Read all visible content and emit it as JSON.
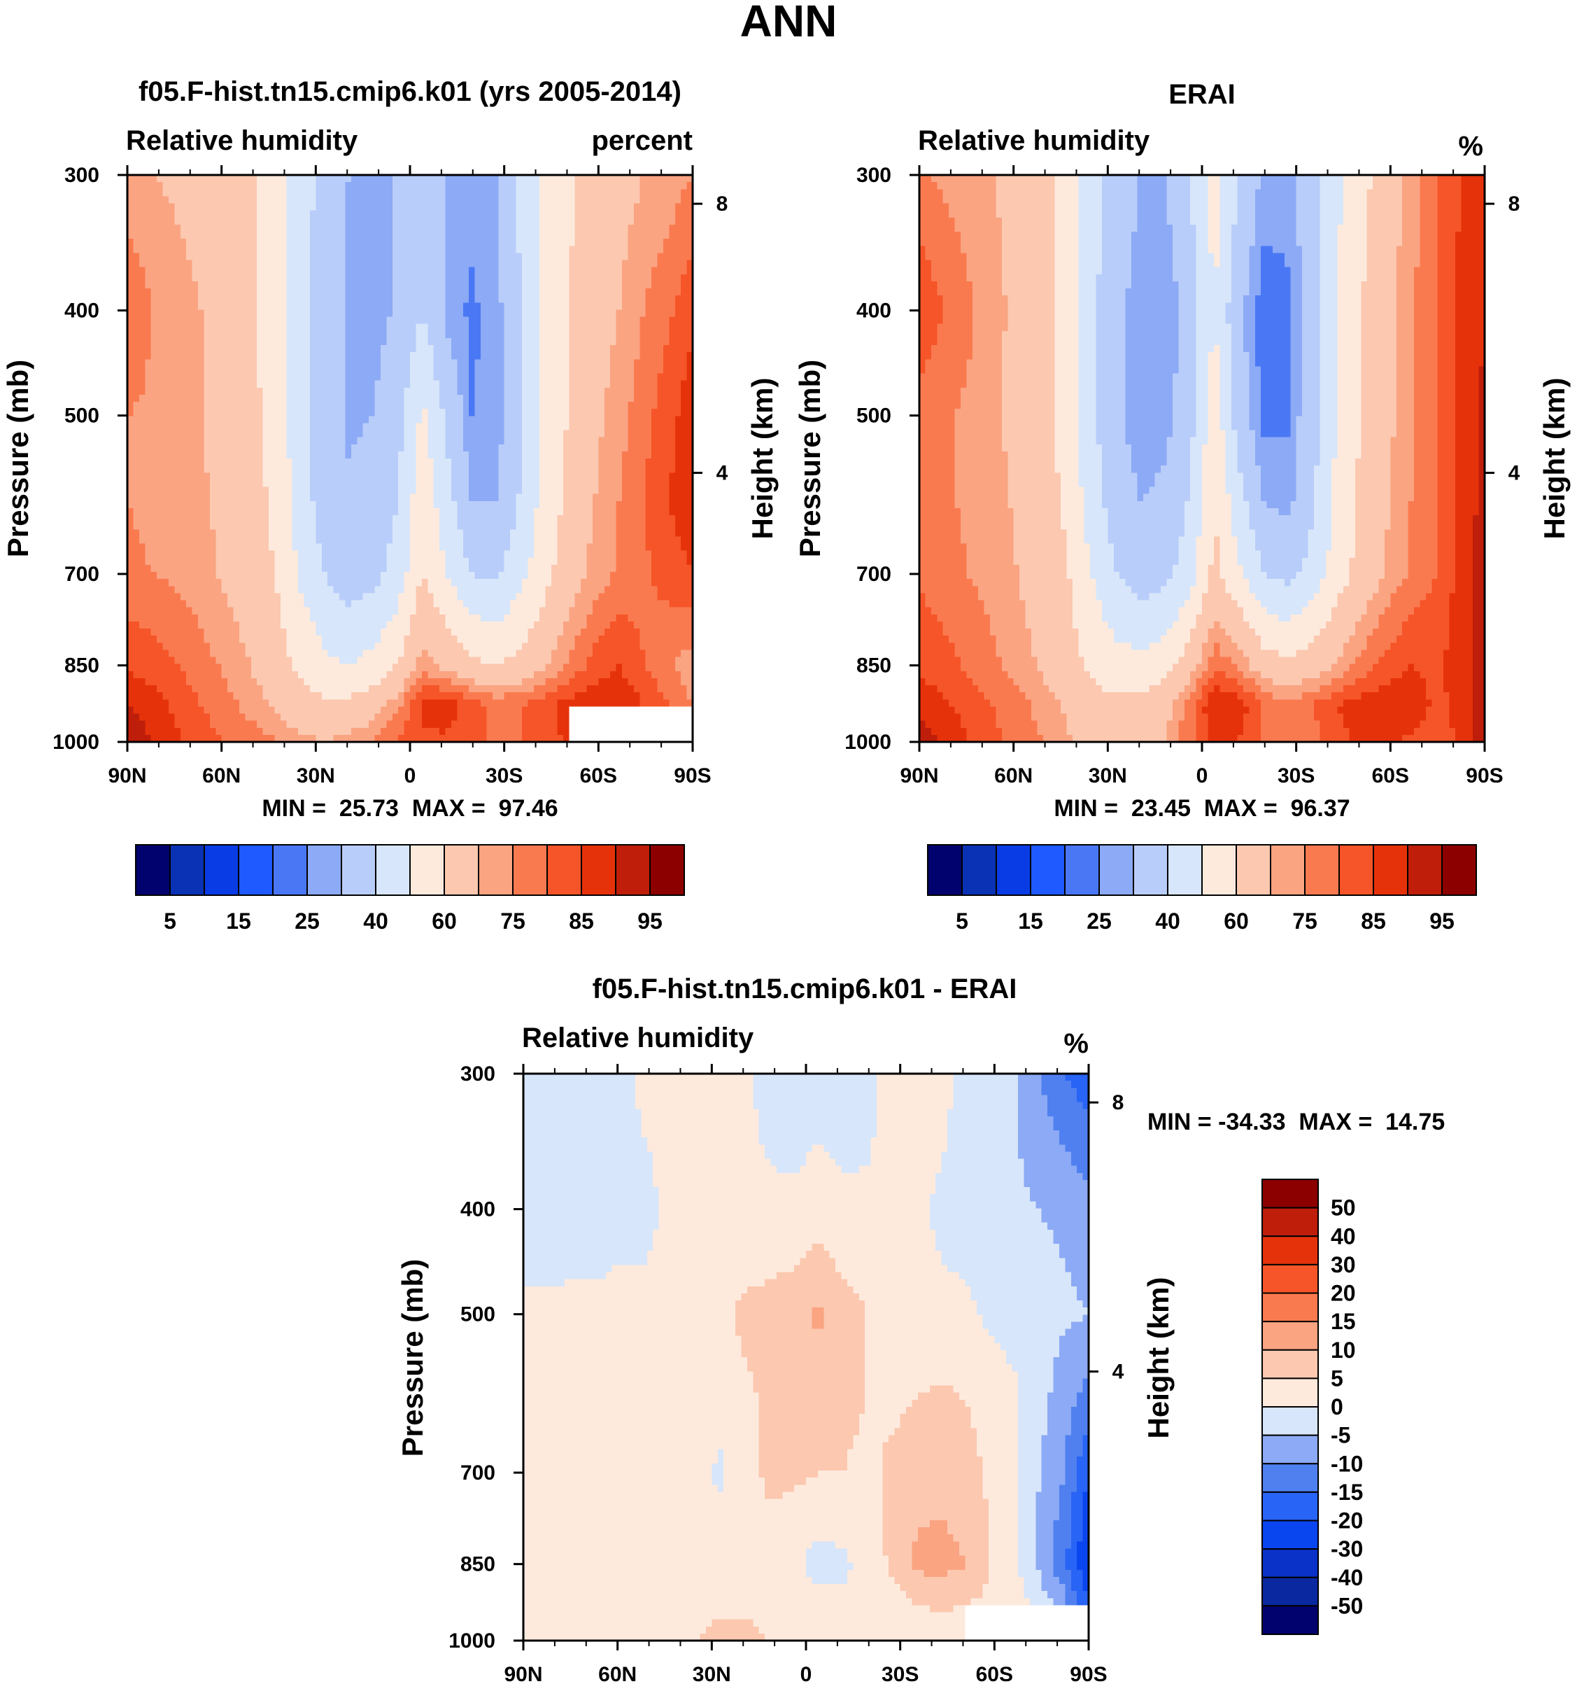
{
  "page": {
    "title": "ANN"
  },
  "chart_data": [
    {
      "type": "heatmap",
      "panel": "model",
      "title": "f05.F-hist.tn15.cmip6.k01 (yrs 2005-2014)",
      "left_label": "Relative humidity",
      "right_label": "percent",
      "ylabel": "Pressure (mb)",
      "y2label": "Height (km)",
      "xticks": [
        "90N",
        "60N",
        "30N",
        "0",
        "30S",
        "60S",
        "90S"
      ],
      "yticks": [
        "300",
        "400",
        "500",
        "700",
        "850",
        "1000"
      ],
      "y2ticks": [
        "8",
        "4"
      ],
      "stats": "MIN =  25.73  MAX =  97.46",
      "xlim": [
        90,
        -90
      ],
      "ylim": [
        300,
        1000
      ],
      "masked_region": {
        "lat": [
          -50,
          -90
        ],
        "pressure": [
          925,
          1000
        ]
      },
      "field": [
        {
          "p": 300,
          "v": [
            71,
            70,
            69,
            68,
            66,
            62,
            56,
            43,
            38,
            30,
            27,
            31,
            36,
            30,
            27,
            30,
            42,
            52,
            59,
            64,
            67,
            70,
            72,
            75
          ]
        },
        {
          "p": 400,
          "v": [
            80,
            75,
            72,
            70,
            67,
            62,
            55,
            43,
            36,
            28,
            27,
            31,
            40,
            28,
            24,
            27,
            40,
            52,
            60,
            66,
            70,
            75,
            79,
            84
          ]
        },
        {
          "p": 500,
          "v": [
            75,
            74,
            72,
            70,
            67,
            63,
            56,
            44,
            34,
            29,
            30,
            36,
            52,
            38,
            25,
            26,
            39,
            52,
            61,
            68,
            73,
            78,
            83,
            88
          ]
        },
        {
          "p": 600,
          "v": [
            75,
            74,
            73,
            71,
            68,
            64,
            58,
            46,
            35,
            31,
            33,
            40,
            57,
            44,
            30,
            30,
            41,
            54,
            63,
            70,
            75,
            80,
            85,
            89
          ]
        },
        {
          "p": 700,
          "v": [
            76,
            75,
            74,
            72,
            69,
            65,
            60,
            49,
            40,
            35,
            37,
            44,
            60,
            50,
            40,
            38,
            47,
            57,
            66,
            72,
            76,
            79,
            82,
            85
          ]
        },
        {
          "p": 850,
          "v": [
            84,
            83,
            80,
            77,
            74,
            70,
            65,
            58,
            52,
            50,
            53,
            60,
            73,
            68,
            62,
            60,
            63,
            69,
            76,
            82,
            85,
            80,
            76,
            72
          ]
        },
        {
          "p": 925,
          "v": [
            90,
            87,
            84,
            80,
            77,
            73,
            69,
            64,
            62,
            62,
            66,
            74,
            86,
            88,
            83,
            79,
            80,
            84,
            87,
            89,
            90,
            85,
            80,
            75
          ]
        },
        {
          "p": 1000,
          "v": [
            95,
            90,
            86,
            82,
            80,
            78,
            76,
            72,
            70,
            72,
            76,
            80,
            84,
            84,
            81,
            79,
            80,
            83,
            86,
            87,
            88,
            84,
            80,
            76
          ]
        }
      ],
      "levels": [
        "5",
        "15",
        "25",
        "40",
        "60",
        "75",
        "85",
        "95"
      ],
      "colors": [
        "#02026e",
        "#0a32b4",
        "#0a3ce6",
        "#1e5aff",
        "#4a78f5",
        "#8caaf5",
        "#b9cdfa",
        "#d7e6fa",
        "#fdeadd",
        "#fcc8b0",
        "#faa482",
        "#fa7a50",
        "#f55528",
        "#e6320a",
        "#be1e0a",
        "#8c0000"
      ],
      "thresholds": [
        5,
        10,
        15,
        20,
        25,
        30,
        40,
        50,
        60,
        70,
        75,
        80,
        85,
        90,
        95
      ]
    },
    {
      "type": "heatmap",
      "panel": "obs",
      "title": "ERAI",
      "left_label": "Relative humidity",
      "right_label": "%",
      "ylabel": "Pressure (mb)",
      "y2label": "Height (km)",
      "xticks": [
        "90N",
        "60N",
        "30N",
        "0",
        "30S",
        "60S",
        "90S"
      ],
      "yticks": [
        "300",
        "400",
        "500",
        "700",
        "850",
        "1000"
      ],
      "y2ticks": [
        "8",
        "4"
      ],
      "stats": "MIN =  23.45  MAX =  96.37",
      "xlim": [
        90,
        -90
      ],
      "ylim": [
        300,
        1000
      ],
      "field": [
        {
          "p": 300,
          "v": [
            76,
            74,
            72,
            70,
            68,
            63,
            57,
            45,
            36,
            30,
            30,
            40,
            55,
            40,
            28,
            27,
            35,
            48,
            57,
            65,
            72,
            80,
            85,
            88
          ]
        },
        {
          "p": 400,
          "v": [
            84,
            80,
            76,
            72,
            68,
            63,
            56,
            42,
            33,
            26,
            25,
            34,
            50,
            32,
            22,
            24,
            36,
            50,
            60,
            68,
            74,
            80,
            86,
            90
          ]
        },
        {
          "p": 500,
          "v": [
            78,
            76,
            74,
            71,
            68,
            63,
            56,
            42,
            32,
            26,
            27,
            36,
            56,
            35,
            23,
            24,
            37,
            51,
            61,
            68,
            74,
            80,
            86,
            91
          ]
        },
        {
          "p": 600,
          "v": [
            78,
            76,
            74,
            72,
            69,
            65,
            58,
            45,
            35,
            30,
            32,
            41,
            60,
            44,
            30,
            28,
            38,
            52,
            62,
            69,
            75,
            80,
            86,
            92
          ]
        },
        {
          "p": 700,
          "v": [
            79,
            77,
            75,
            73,
            70,
            66,
            61,
            50,
            40,
            35,
            37,
            45,
            63,
            52,
            40,
            37,
            44,
            55,
            64,
            71,
            76,
            80,
            87,
            93
          ]
        },
        {
          "p": 850,
          "v": [
            84,
            82,
            79,
            76,
            73,
            69,
            64,
            58,
            54,
            53,
            56,
            66,
            79,
            74,
            65,
            62,
            65,
            71,
            77,
            82,
            85,
            84,
            87,
            94
          ]
        },
        {
          "p": 925,
          "v": [
            88,
            86,
            83,
            80,
            77,
            73,
            69,
            64,
            62,
            63,
            67,
            78,
            90,
            88,
            80,
            77,
            80,
            85,
            88,
            89,
            88,
            84,
            86,
            95
          ]
        },
        {
          "p": 1000,
          "v": [
            94,
            89,
            85,
            81,
            78,
            75,
            71,
            66,
            64,
            66,
            70,
            79,
            86,
            85,
            79,
            76,
            78,
            83,
            86,
            86,
            84,
            82,
            86,
            96
          ]
        }
      ],
      "levels": [
        "5",
        "15",
        "25",
        "40",
        "60",
        "75",
        "85",
        "95"
      ],
      "colors": [
        "#02026e",
        "#0a32b4",
        "#0a3ce6",
        "#1e5aff",
        "#4a78f5",
        "#8caaf5",
        "#b9cdfa",
        "#d7e6fa",
        "#fdeadd",
        "#fcc8b0",
        "#faa482",
        "#fa7a50",
        "#f55528",
        "#e6320a",
        "#be1e0a",
        "#8c0000"
      ],
      "thresholds": [
        5,
        10,
        15,
        20,
        25,
        30,
        40,
        50,
        60,
        70,
        75,
        80,
        85,
        90,
        95
      ]
    },
    {
      "type": "heatmap",
      "panel": "diff",
      "title": "f05.F-hist.tn15.cmip6.k01 - ERAI",
      "left_label": "Relative humidity",
      "right_label": "%",
      "ylabel": "Pressure (mb)",
      "y2label": "Height (km)",
      "xticks": [
        "90N",
        "60N",
        "30N",
        "0",
        "30S",
        "60S",
        "90S"
      ],
      "yticks": [
        "300",
        "400",
        "500",
        "700",
        "850",
        "1000"
      ],
      "y2ticks": [
        "8",
        "4"
      ],
      "stats": "MIN = -34.33  MAX =  14.75",
      "xlim": [
        90,
        -90
      ],
      "ylim": [
        300,
        1000
      ],
      "masked_region": {
        "lat": [
          -50,
          -90
        ],
        "pressure": [
          925,
          1000
        ]
      },
      "field": [
        {
          "p": 300,
          "v": [
            -2,
            -2,
            -1,
            -1,
            -1,
            1,
            1,
            1,
            2,
            1,
            -2,
            -3,
            -2,
            -3,
            -2,
            2,
            3,
            2,
            -2,
            -4,
            -5,
            -10,
            -15,
            -18
          ]
        },
        {
          "p": 400,
          "v": [
            -3,
            -3,
            -2,
            -2,
            -1,
            -1,
            1,
            1,
            1,
            1,
            1,
            1,
            2,
            1,
            1,
            1,
            1,
            -1,
            -2,
            -3,
            -4,
            -5,
            -6,
            -8
          ]
        },
        {
          "p": 500,
          "v": [
            1,
            1,
            1,
            1,
            1,
            1,
            1,
            2,
            4,
            6,
            7,
            8,
            11,
            7,
            5,
            4,
            2,
            1,
            1,
            -1,
            -2,
            -3,
            -4,
            -5
          ]
        },
        {
          "p": 600,
          "v": [
            1,
            1,
            1,
            1,
            1,
            1,
            2,
            2,
            2,
            4,
            6,
            7,
            6,
            6,
            5,
            4,
            5,
            6,
            5,
            3,
            1,
            -3,
            -8,
            -12
          ]
        },
        {
          "p": 700,
          "v": [
            1,
            1,
            1,
            1,
            1,
            1,
            2,
            2,
            -1,
            3,
            6,
            6,
            5,
            5,
            4,
            6,
            8,
            8,
            7,
            4,
            1,
            -5,
            -10,
            -20
          ]
        },
        {
          "p": 850,
          "v": [
            1,
            1,
            1,
            2,
            2,
            3,
            2,
            2,
            3,
            3,
            3,
            1,
            -2,
            -1,
            2,
            6,
            11,
            12,
            10,
            5,
            1,
            -6,
            -14,
            -25
          ]
        },
        {
          "p": 925,
          "v": [
            1,
            1,
            1,
            2,
            2,
            1,
            2,
            3,
            4,
            4,
            3,
            3,
            2,
            1,
            2,
            3,
            5,
            6,
            5,
            4,
            3,
            -2,
            -8,
            -20
          ]
        },
        {
          "p": 1000,
          "v": [
            1,
            1,
            1,
            1,
            1,
            2,
            3,
            5,
            7,
            7,
            5,
            3,
            2,
            2,
            2,
            1,
            1,
            1,
            1,
            -2,
            -2,
            1,
            1,
            1
          ]
        }
      ],
      "levels": [
        "50",
        "40",
        "30",
        "20",
        "15",
        "10",
        "5",
        "0",
        "-5",
        "-10",
        "-15",
        "-20",
        "-30",
        "-40",
        "-50"
      ],
      "colors": [
        "#02026e",
        "#0a28a0",
        "#0a32c8",
        "#0a46f0",
        "#2864f5",
        "#5080f0",
        "#8caaf5",
        "#d7e6fa",
        "#fdeadd",
        "#fcc8b0",
        "#faa482",
        "#fa7a50",
        "#f55528",
        "#e6320a",
        "#be1e0a",
        "#8c0000"
      ],
      "thresholds": [
        -50,
        -40,
        -30,
        -20,
        -15,
        -10,
        -5,
        0,
        5,
        10,
        15,
        20,
        30,
        40,
        50
      ]
    }
  ]
}
